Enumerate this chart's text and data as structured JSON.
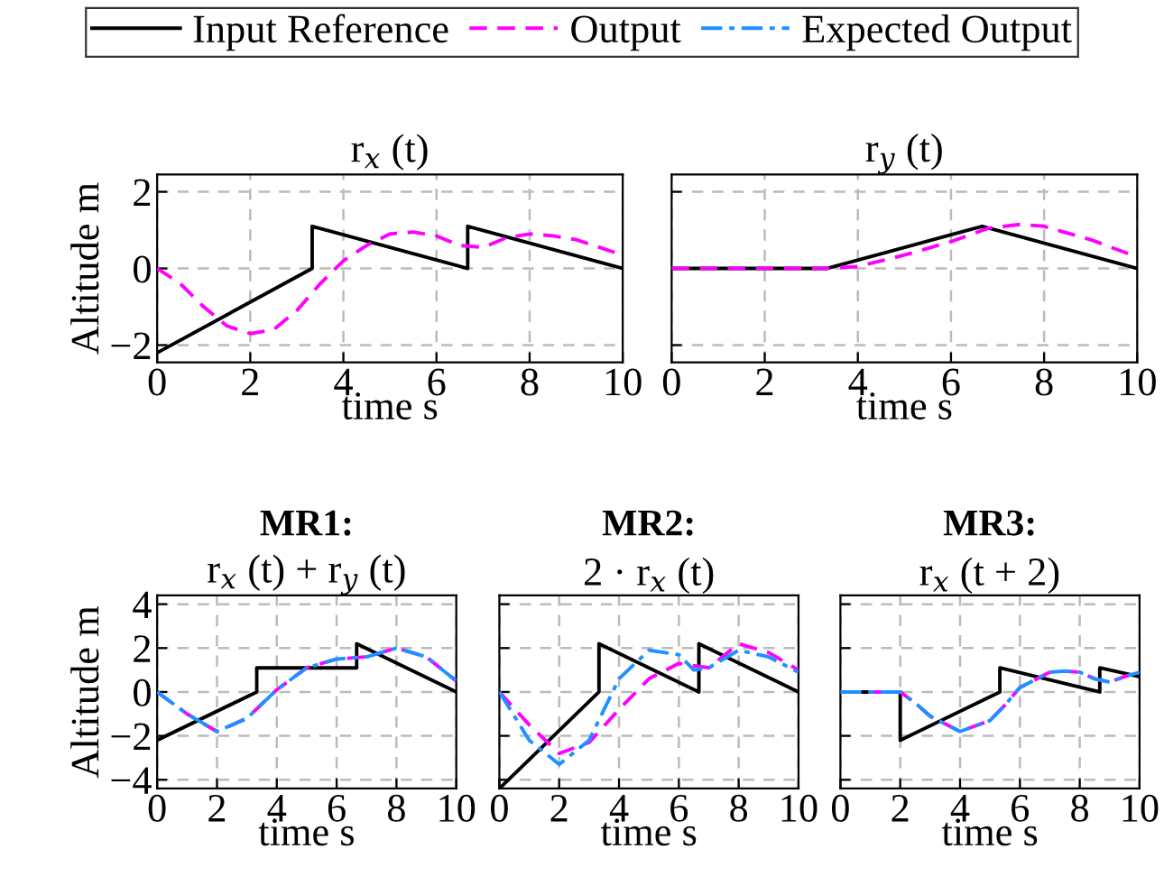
{
  "chart_data": [
    {
      "type": "line",
      "title": "r$_{x}$ (t)",
      "xlabel": "time s",
      "ylabel": "Altitude m",
      "xlim": [
        0,
        10
      ],
      "xticks": [
        0,
        2,
        4,
        6,
        8,
        10
      ],
      "ylim": [
        -2.45,
        2.45
      ],
      "yticks": [
        -2,
        0,
        2
      ],
      "grid": true,
      "series": [
        {
          "color": "#000000",
          "line_style": "solid",
          "x": [
            0,
            3.33,
            3.33,
            6.67,
            6.67,
            10
          ],
          "values": [
            -2.2,
            0,
            1.1,
            0,
            1.1,
            0
          ]
        },
        {
          "color": "#ff00ff",
          "line_style": "dashed",
          "x": [
            0,
            0.5,
            1,
            1.5,
            2,
            2.5,
            3,
            3.5,
            4,
            4.5,
            5,
            5.5,
            6,
            6.5,
            7,
            7.5,
            8,
            8.5,
            9,
            9.5,
            10
          ],
          "values": [
            0,
            -0.4,
            -1.0,
            -1.5,
            -1.7,
            -1.6,
            -1.1,
            -0.4,
            0.2,
            0.6,
            0.9,
            0.95,
            0.85,
            0.6,
            0.55,
            0.8,
            0.9,
            0.85,
            0.75,
            0.55,
            0.35
          ]
        }
      ]
    },
    {
      "type": "line",
      "title": "r$_{y}$ (t)",
      "xlabel": "time s",
      "xlim": [
        0,
        10
      ],
      "xticks": [
        0,
        2,
        4,
        6,
        8,
        10
      ],
      "ylim": [
        -2.45,
        2.45
      ],
      "yticks": [
        -2,
        0,
        2
      ],
      "grid": true,
      "tick_labels": "x",
      "series": [
        {
          "color": "#000000",
          "line_style": "solid",
          "x": [
            0,
            3.33,
            6.67,
            10
          ],
          "values": [
            0,
            0,
            1.1,
            0
          ]
        },
        {
          "color": "#ff00ff",
          "line_style": "dashed",
          "x": [
            0,
            3.33,
            4,
            5,
            6,
            6.8,
            7.5,
            8,
            9,
            10
          ],
          "values": [
            0,
            0,
            0.05,
            0.35,
            0.7,
            1.05,
            1.15,
            1.1,
            0.75,
            0.3
          ]
        }
      ]
    },
    {
      "type": "line",
      "title": "MR1:",
      "subtitle": "r$_{x}$ (t) + r$_{y}$ (t)",
      "xlabel": "time s",
      "ylabel": "Altitude m",
      "xlim": [
        0,
        10
      ],
      "xticks": [
        0,
        2,
        4,
        6,
        8,
        10
      ],
      "ylim": [
        -4.4,
        4.4
      ],
      "yticks": [
        -4,
        -2,
        0,
        2,
        4
      ],
      "grid": true,
      "legend": "top",
      "series": [
        {
          "name": "Input Reference",
          "color": "#000000",
          "line_style": "solid",
          "x": [
            0,
            3.33,
            3.33,
            6.67,
            6.67,
            10
          ],
          "values": [
            -2.2,
            0,
            1.1,
            1.1,
            2.2,
            0
          ]
        },
        {
          "name": "Output",
          "color": "#ff00ff",
          "line_style": "dashed",
          "x": [
            0,
            1,
            2,
            3,
            4,
            5,
            6,
            7,
            8,
            9,
            10
          ],
          "values": [
            0,
            -1.0,
            -1.8,
            -1.2,
            0.1,
            1.1,
            1.5,
            1.6,
            2.0,
            1.6,
            0.5
          ]
        },
        {
          "name": "Expected Output",
          "color": "#1e90ff",
          "line_style": "dashdot",
          "x": [
            0,
            1,
            2,
            3,
            4,
            5,
            6,
            7,
            8,
            9,
            10
          ],
          "values": [
            0,
            -1.0,
            -1.8,
            -1.2,
            0.1,
            1.1,
            1.5,
            1.6,
            2.0,
            1.6,
            0.5
          ]
        }
      ]
    },
    {
      "type": "line",
      "title": "MR2:",
      "subtitle": "2 · r$_{x}$ (t)",
      "xlabel": "time s",
      "xlim": [
        0,
        10
      ],
      "xticks": [
        0,
        2,
        4,
        6,
        8,
        10
      ],
      "ylim": [
        -4.4,
        4.4
      ],
      "yticks": [
        -4,
        -2,
        0,
        2,
        4
      ],
      "grid": true,
      "tick_labels": "x",
      "series": [
        {
          "color": "#000000",
          "line_style": "solid",
          "x": [
            0,
            3.33,
            3.33,
            6.67,
            6.67,
            10
          ],
          "values": [
            -4.4,
            0,
            2.2,
            0,
            2.2,
            0
          ]
        },
        {
          "color": "#ff00ff",
          "line_style": "dashed",
          "x": [
            0,
            1,
            2,
            3,
            4,
            5,
            6,
            7,
            8,
            9,
            10
          ],
          "values": [
            0,
            -1.5,
            -2.8,
            -2.3,
            -0.8,
            0.6,
            1.3,
            1.1,
            2.2,
            1.8,
            1.0
          ]
        },
        {
          "color": "#1e90ff",
          "line_style": "dashdot",
          "x": [
            0,
            1,
            2,
            3,
            3.5,
            4,
            5,
            6,
            6.5,
            7,
            8,
            9,
            10
          ],
          "values": [
            0,
            -2.2,
            -3.3,
            -2.2,
            -0.8,
            0.6,
            1.9,
            1.7,
            1.0,
            1.1,
            1.9,
            1.6,
            0.9
          ]
        }
      ]
    },
    {
      "type": "line",
      "title": "MR3:",
      "subtitle": "r$_{x}$ (t + 2)",
      "xlabel": "time s",
      "xlim": [
        0,
        10
      ],
      "xticks": [
        0,
        2,
        4,
        6,
        8,
        10
      ],
      "ylim": [
        -4.4,
        4.4
      ],
      "yticks": [
        -4,
        -2,
        0,
        2,
        4
      ],
      "grid": true,
      "tick_labels": "x",
      "series": [
        {
          "color": "#000000",
          "line_style": "solid",
          "x": [
            0,
            2,
            2,
            5.33,
            5.33,
            8.67,
            8.67,
            10
          ],
          "values": [
            0,
            0,
            -2.2,
            0,
            1.1,
            0,
            1.1,
            0.7
          ]
        },
        {
          "color": "#ff00ff",
          "line_style": "dashed",
          "x": [
            0,
            2,
            2.5,
            3,
            4,
            5,
            5.5,
            6,
            7,
            7.5,
            8,
            8.5,
            9,
            9.5,
            10
          ],
          "values": [
            0,
            0,
            -0.5,
            -1.1,
            -1.8,
            -1.3,
            -0.6,
            0.2,
            0.9,
            0.95,
            0.9,
            0.6,
            0.45,
            0.7,
            0.9
          ]
        },
        {
          "color": "#1e90ff",
          "line_style": "dashdot",
          "x": [
            0,
            2,
            2.5,
            3,
            4,
            5,
            5.5,
            6,
            7,
            7.5,
            8,
            8.5,
            9,
            9.5,
            10
          ],
          "values": [
            0,
            0,
            -0.5,
            -1.1,
            -1.8,
            -1.3,
            -0.6,
            0.2,
            0.9,
            0.95,
            0.9,
            0.6,
            0.45,
            0.7,
            0.9
          ]
        }
      ]
    }
  ]
}
